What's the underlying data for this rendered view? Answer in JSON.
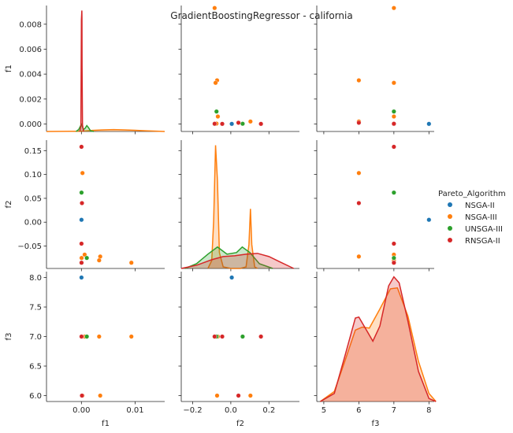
{
  "chart_data": {
    "type": "scatter",
    "subtype": "pairplot",
    "title": "GradientBoostingRegressor - california",
    "variables": [
      "f1",
      "f2",
      "f3"
    ],
    "diag_kind": "kde",
    "legend": {
      "title": "Pareto_Algorithm",
      "placement": "right"
    },
    "ranges": {
      "f1": [
        -0.0065,
        0.0155
      ],
      "f2": [
        -0.26,
        0.36
      ],
      "f3": [
        4.8,
        8.15
      ]
    },
    "yranges": {
      "f1": [
        -0.0006,
        0.0095
      ],
      "f2": [
        -0.097,
        0.172
      ],
      "f3": [
        5.9,
        8.1
      ]
    },
    "ticks": {
      "f1": [
        0.0,
        0.01
      ],
      "f1_labels": [
        "0.00",
        "0.01"
      ],
      "f1_y": [
        0.0,
        0.002,
        0.004,
        0.006,
        0.008
      ],
      "f1_y_labels": [
        "0.000",
        "0.002",
        "0.004",
        "0.006",
        "0.008"
      ],
      "f2": [
        -0.2,
        0.0,
        0.2
      ],
      "f2_labels": [
        "−0.2",
        "0.0",
        "0.2"
      ],
      "f2_y": [
        -0.05,
        0.0,
        0.05,
        0.1,
        0.15
      ],
      "f2_y_labels": [
        "−0.05",
        "0.00",
        "0.05",
        "0.10",
        "0.15"
      ],
      "f3": [
        5,
        6,
        7,
        8
      ],
      "f3_labels": [
        "5",
        "6",
        "7",
        "8"
      ],
      "f3_y": [
        6.0,
        6.5,
        7.0,
        7.5,
        8.0
      ],
      "f3_y_labels": [
        "6.0",
        "6.5",
        "7.0",
        "7.5",
        "8.0"
      ]
    },
    "series": [
      {
        "name": "NSGA-II",
        "color": "#1f77b4",
        "points": [
          {
            "f1": 1e-05,
            "f2": 0.005,
            "f3": 8
          }
        ]
      },
      {
        "name": "NSGA-III",
        "color": "#ff7f0e",
        "points": [
          {
            "f1": 0.0093,
            "f2": -0.085,
            "f3": 7
          },
          {
            "f1": 0.0035,
            "f2": -0.072,
            "f3": 6
          },
          {
            "f1": 0.0033,
            "f2": -0.08,
            "f3": 7
          },
          {
            "f1": 0.0006,
            "f2": -0.068,
            "f3": 7
          },
          {
            "f1": 0.0002,
            "f2": 0.103,
            "f3": 6
          },
          {
            "f1": 3e-05,
            "f2": -0.075,
            "f3": 7
          }
        ]
      },
      {
        "name": "UNSGA-III",
        "color": "#2ca02c",
        "points": [
          {
            "f1": 0.001,
            "f2": -0.075,
            "f3": 7
          },
          {
            "f1": 2e-05,
            "f2": 0.062,
            "f3": 7
          },
          {
            "f1": 1e-05,
            "f2": -0.085,
            "f3": 7
          }
        ]
      },
      {
        "name": "RNSGA-II",
        "color": "#d62728",
        "points": [
          {
            "f1": 1e-05,
            "f2": 0.158,
            "f3": 7
          },
          {
            "f1": 0.0001,
            "f2": 0.04,
            "f3": 6
          },
          {
            "f1": 1e-05,
            "f2": -0.045,
            "f3": 7
          },
          {
            "f1": 2e-05,
            "f2": -0.085,
            "f3": 7
          }
        ]
      }
    ],
    "kde": {
      "f1": [
        {
          "name": "NSGA-III",
          "color": "#ff7f0e",
          "x": [
            -0.0065,
            0.0,
            0.002,
            0.004,
            0.006,
            0.008,
            0.01,
            0.012,
            0.0155
          ],
          "d": [
            0.0,
            2e-05,
            8e-05,
            0.00012,
            0.00014,
            0.00012,
            9e-05,
            5e-05,
            0.0
          ]
        },
        {
          "name": "UNSGA-III",
          "color": "#2ca02c",
          "x": [
            -0.001,
            -0.0005,
            0.0,
            0.0004,
            0.0007,
            0.001,
            0.0013,
            0.0017,
            0.0023
          ],
          "d": [
            0.0,
            0.00015,
            0.00055,
            0.00015,
            0.00025,
            0.00045,
            0.0003,
            5e-05,
            0.0
          ]
        },
        {
          "name": "RNSGA-II",
          "color": "#d62728",
          "x": [
            -0.0003,
            -0.0001,
            0.0,
            8e-05,
            0.0001,
            0.00012,
            0.0002,
            0.0004
          ],
          "d": [
            0.0,
            0.0004,
            0.0085,
            0.0092,
            0.0087,
            0.005,
            0.0005,
            0.0
          ]
        }
      ],
      "f2": [
        {
          "name": "NSGA-III",
          "color": "#ff7f0e",
          "x": [
            -0.12,
            -0.1,
            -0.09,
            -0.08,
            -0.07,
            -0.06,
            -0.04,
            0.0,
            0.05,
            0.08,
            0.095,
            0.103,
            0.11,
            0.125,
            0.14
          ],
          "d": [
            0.0,
            0.01,
            0.06,
            0.155,
            0.11,
            0.02,
            0.002,
            0.0,
            0.0,
            0.002,
            0.03,
            0.075,
            0.03,
            0.002,
            0.0
          ]
        },
        {
          "name": "UNSGA-III",
          "color": "#2ca02c",
          "x": [
            -0.24,
            -0.18,
            -0.12,
            -0.07,
            -0.02,
            0.03,
            0.06,
            0.1,
            0.15,
            0.22
          ],
          "d": [
            0.0,
            0.006,
            0.018,
            0.027,
            0.018,
            0.02,
            0.027,
            0.02,
            0.006,
            0.0
          ]
        },
        {
          "name": "RNSGA-II",
          "color": "#d62728",
          "x": [
            -0.26,
            -0.18,
            -0.1,
            -0.04,
            0.02,
            0.08,
            0.14,
            0.2,
            0.26,
            0.33
          ],
          "d": [
            0.0,
            0.004,
            0.011,
            0.015,
            0.016,
            0.018,
            0.019,
            0.015,
            0.008,
            0.0
          ]
        }
      ],
      "f3": [
        {
          "name": "NSGA-III",
          "color": "#ff7f0e",
          "x": [
            4.9,
            5.3,
            5.6,
            5.9,
            6.1,
            6.3,
            6.6,
            6.9,
            7.1,
            7.4,
            7.7,
            8.0,
            8.2
          ],
          "d": [
            0.0,
            0.1,
            0.4,
            0.71,
            0.74,
            0.73,
            0.92,
            1.12,
            1.13,
            0.85,
            0.4,
            0.08,
            0.0
          ]
        },
        {
          "name": "RNSGA-II",
          "color": "#d62728",
          "x": [
            4.9,
            5.3,
            5.6,
            5.9,
            6.0,
            6.2,
            6.4,
            6.6,
            6.85,
            7.0,
            7.15,
            7.4,
            7.7,
            8.0,
            8.2
          ],
          "d": [
            0.0,
            0.08,
            0.45,
            0.83,
            0.84,
            0.72,
            0.6,
            0.75,
            1.15,
            1.24,
            1.18,
            0.8,
            0.3,
            0.03,
            0.0
          ]
        }
      ]
    }
  }
}
